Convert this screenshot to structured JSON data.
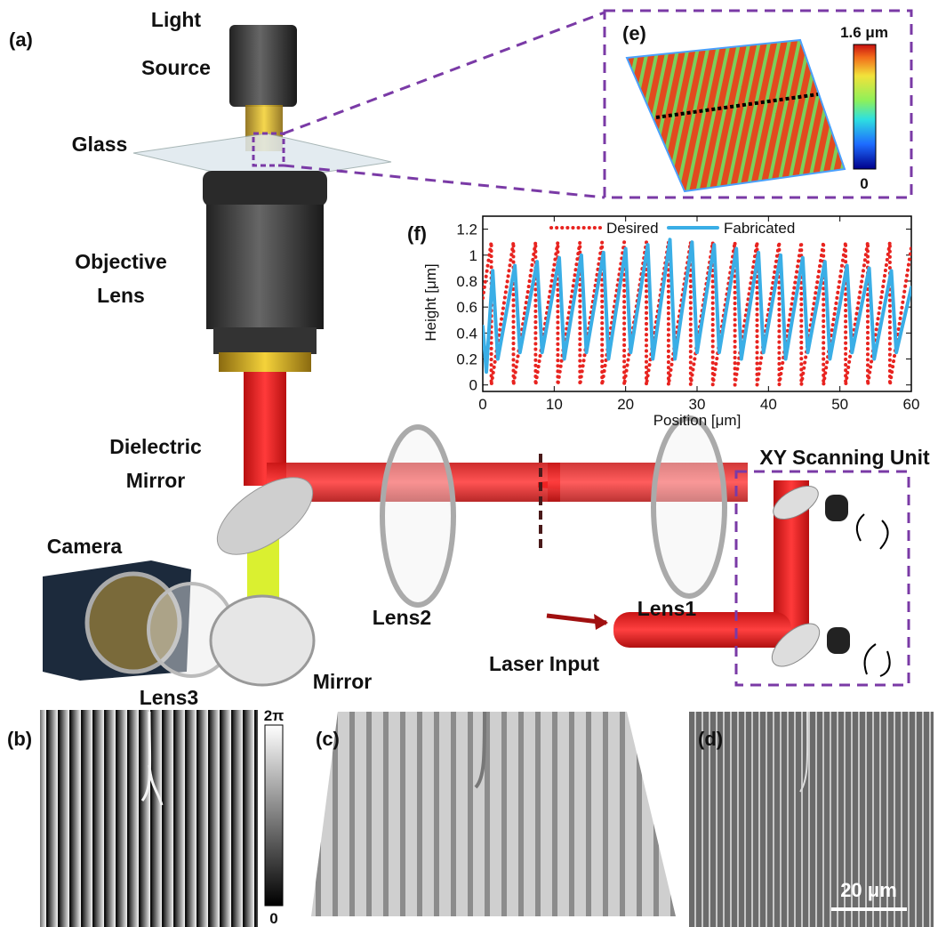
{
  "panels": {
    "a": "(a)",
    "b": "(b)",
    "c": "(c)",
    "d": "(d)",
    "e": "(e)",
    "f": "(f)"
  },
  "labels": {
    "light_source": [
      "Light",
      "Source"
    ],
    "glass": "Glass",
    "objective_lens": [
      "Objective",
      "Lens"
    ],
    "dielectric_mirror": [
      "Dielectric",
      "Mirror"
    ],
    "camera": "Camera",
    "lens3": "Lens3",
    "mirror": "Mirror",
    "lens2": "Lens2",
    "laser_input": "Laser Input",
    "lens1": "Lens1",
    "xy_scanning_unit": "XY Scanning Unit"
  },
  "colorbar_e": {
    "max": "1.6 μm",
    "min": "0"
  },
  "colorbar_b": {
    "max": "2π",
    "min": "0"
  },
  "scale_bar": "20 μm",
  "chart_data": {
    "type": "line",
    "xlabel": "Position [μm]",
    "ylabel": "Height [μm]",
    "xlim": [
      0,
      60
    ],
    "xticks": [
      0,
      10,
      20,
      30,
      40,
      50,
      60
    ],
    "ylim": [
      -0.05,
      1.3
    ],
    "yticks": [
      0,
      0.2,
      0.4,
      0.6,
      0.8,
      1.0,
      1.2
    ],
    "series": [
      {
        "name": "Desired",
        "color": "#e8231f",
        "style": "dotted",
        "x": [
          0,
          1.2,
          1.2,
          4.3,
          4.3,
          7.4,
          7.4,
          10.5,
          10.5,
          13.6,
          13.6,
          16.7,
          16.7,
          19.8,
          19.8,
          22.9,
          22.9,
          26.0,
          26.0,
          29.1,
          29.1,
          32.2,
          32.2,
          35.3,
          35.3,
          38.4,
          38.4,
          41.5,
          41.5,
          44.6,
          44.6,
          47.7,
          47.7,
          50.8,
          50.8,
          53.9,
          53.9,
          57.0,
          57.0,
          60
        ],
        "values": [
          0.67,
          1.1,
          0,
          1.1,
          0,
          1.1,
          0,
          1.1,
          0,
          1.1,
          0,
          1.1,
          0,
          1.1,
          0,
          1.1,
          0,
          1.1,
          0,
          1.1,
          0,
          1.1,
          0,
          1.1,
          0,
          1.1,
          0,
          1.1,
          0,
          1.1,
          0,
          1.1,
          0,
          1.1,
          0,
          1.1,
          0,
          1.1,
          0,
          1.06
        ]
      },
      {
        "name": "Fabricated",
        "color": "#3aaee6",
        "style": "solid",
        "x": [
          0,
          0.5,
          1.4,
          2.1,
          4.5,
          5.2,
          7.6,
          8.3,
          10.7,
          11.4,
          13.8,
          14.5,
          16.9,
          17.6,
          20.0,
          20.7,
          23.1,
          23.8,
          26.2,
          26.9,
          29.3,
          30.0,
          32.4,
          33.1,
          35.5,
          36.2,
          38.6,
          39.3,
          41.7,
          42.4,
          44.8,
          45.5,
          47.9,
          48.6,
          51.0,
          51.7,
          54.1,
          54.8,
          57.2,
          57.9,
          60
        ],
        "values": [
          0.45,
          0.1,
          0.88,
          0.2,
          0.92,
          0.25,
          0.95,
          0.25,
          0.98,
          0.2,
          1.0,
          0.25,
          1.02,
          0.2,
          1.05,
          0.25,
          1.08,
          0.2,
          1.12,
          0.2,
          1.1,
          0.25,
          1.08,
          0.25,
          1.05,
          0.2,
          1.02,
          0.25,
          1.0,
          0.2,
          0.98,
          0.25,
          0.95,
          0.2,
          0.92,
          0.25,
          0.9,
          0.2,
          0.88,
          0.25,
          0.75
        ]
      }
    ]
  }
}
